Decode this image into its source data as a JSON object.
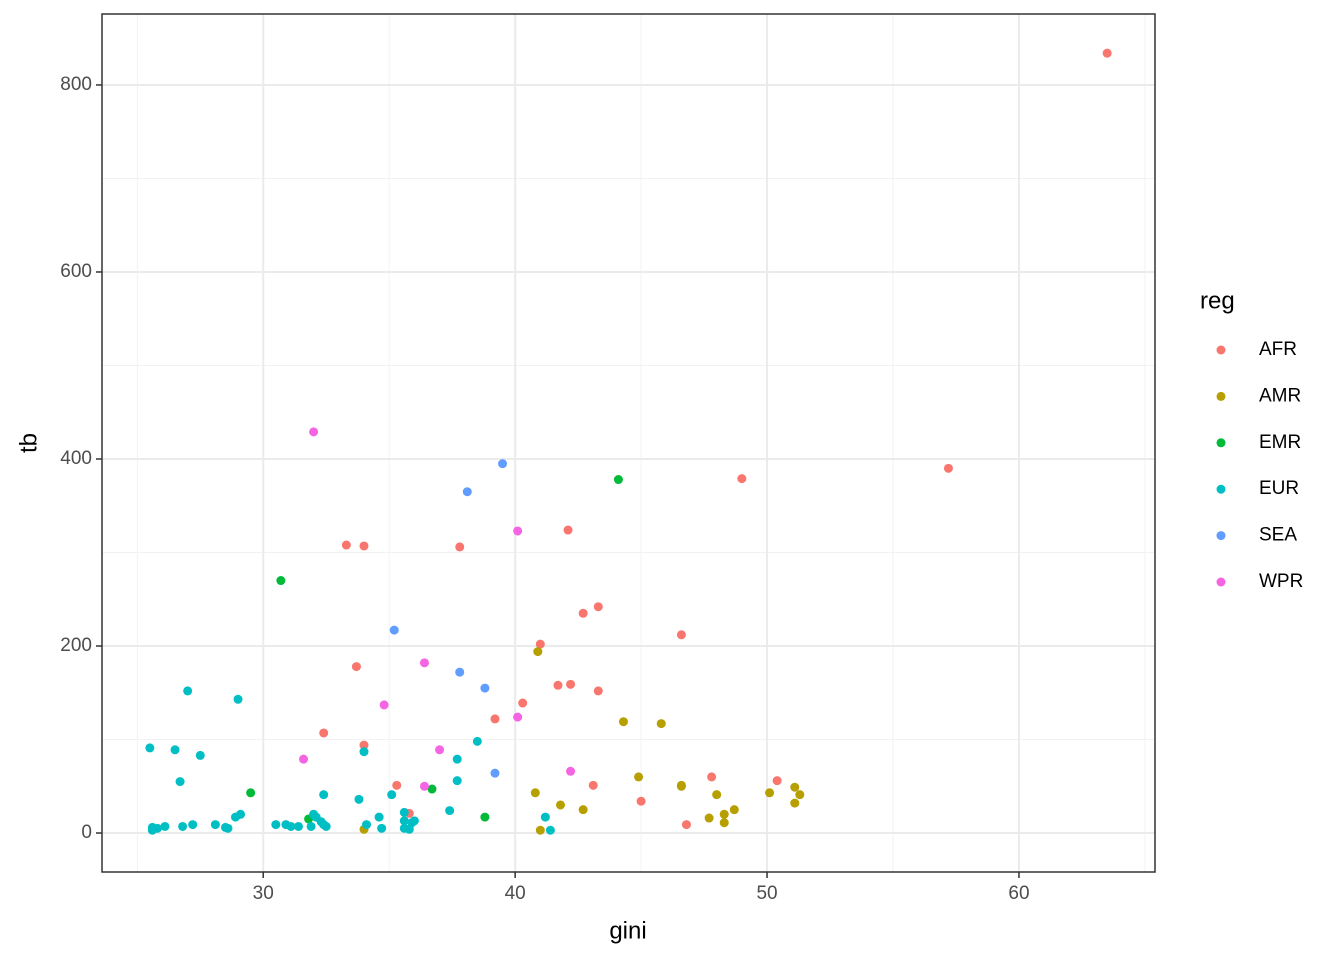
{
  "chart_data": {
    "type": "scatter",
    "x_label": "gini",
    "y_label": "tb",
    "legend_title": "reg",
    "legend": "right",
    "grid": true,
    "xlim": [
      23.6,
      65.4
    ],
    "ylim": [
      -41.7,
      875.9
    ],
    "xticks": [
      30,
      40,
      50,
      60
    ],
    "yticks": [
      0,
      200,
      400,
      600,
      800
    ],
    "xminor": [
      25,
      35,
      45,
      55,
      65
    ],
    "yminor": [
      100,
      300,
      500,
      700
    ],
    "series": [
      {
        "name": "AFR",
        "color": "#F8766D",
        "x": [
          63.5,
          57.2,
          49.0,
          42.1,
          33.3,
          34.0,
          37.8,
          43.3,
          42.7,
          46.6,
          41.0,
          33.7,
          41.7,
          42.2,
          43.3,
          40.3,
          39.2,
          32.4,
          34.0,
          47.8,
          50.4,
          35.3,
          43.1,
          35.8,
          45.0,
          46.8
        ],
        "values": [
          834,
          390,
          379,
          324,
          308,
          307,
          306,
          242,
          235,
          212,
          202,
          178,
          158,
          159,
          152,
          139,
          122,
          107,
          94,
          60,
          56,
          51,
          51,
          21,
          34,
          9
        ]
      },
      {
        "name": "AMR",
        "color": "#B79F00",
        "x": [
          40.9,
          44.3,
          45.8,
          44.9,
          46.6,
          46.6,
          40.8,
          48.0,
          50.1,
          51.1,
          51.3,
          51.1,
          41.8,
          42.7,
          48.7,
          47.7,
          48.3,
          48.3,
          34.0,
          41.0
        ],
        "values": [
          194,
          119,
          117,
          60,
          51,
          50,
          43,
          41,
          43,
          49,
          41,
          32,
          30,
          25,
          25,
          16,
          20,
          11,
          4,
          3
        ]
      },
      {
        "name": "EMR",
        "color": "#00BA38",
        "x": [
          44.1,
          30.7,
          29.5,
          36.7,
          31.8,
          38.8
        ],
        "values": [
          378,
          270,
          43,
          47,
          15,
          17
        ]
      },
      {
        "name": "EUR",
        "color": "#00BFC4",
        "x": [
          27.0,
          29.0,
          25.5,
          26.5,
          27.5,
          26.7,
          37.7,
          38.5,
          34.0,
          37.7,
          32.4,
          33.8,
          35.1,
          37.4,
          29.1,
          28.9,
          32.0,
          32.1,
          32.3,
          35.6,
          35.6,
          35.9,
          36.0,
          34.6,
          34.1,
          41.2,
          30.5,
          30.9,
          31.1,
          31.4,
          31.9,
          32.4,
          32.5,
          28.1,
          28.5,
          28.6,
          27.2,
          26.8,
          25.6,
          25.6,
          25.8,
          26.1,
          34.7,
          35.6,
          35.8,
          41.4
        ],
        "values": [
          152,
          143,
          91,
          89,
          83,
          55,
          79,
          98,
          87,
          56,
          41,
          36,
          41,
          24,
          20,
          17,
          20,
          17,
          12,
          22,
          13,
          11,
          13,
          17,
          9,
          17,
          9,
          9,
          7,
          7,
          7,
          9,
          7,
          9,
          6,
          5,
          9,
          7,
          6,
          3,
          5,
          7,
          5,
          5,
          4,
          3
        ]
      },
      {
        "name": "SEA",
        "color": "#619CFF",
        "x": [
          39.5,
          38.1,
          35.2,
          37.8,
          38.8,
          39.2
        ],
        "values": [
          395,
          365,
          217,
          172,
          155,
          64
        ]
      },
      {
        "name": "WPR",
        "color": "#F564E3",
        "x": [
          32.0,
          40.1,
          36.4,
          34.8,
          40.1,
          37.0,
          31.6,
          42.2,
          36.4
        ],
        "values": [
          429,
          323,
          182,
          137,
          124,
          89,
          79,
          66,
          50
        ]
      }
    ]
  }
}
